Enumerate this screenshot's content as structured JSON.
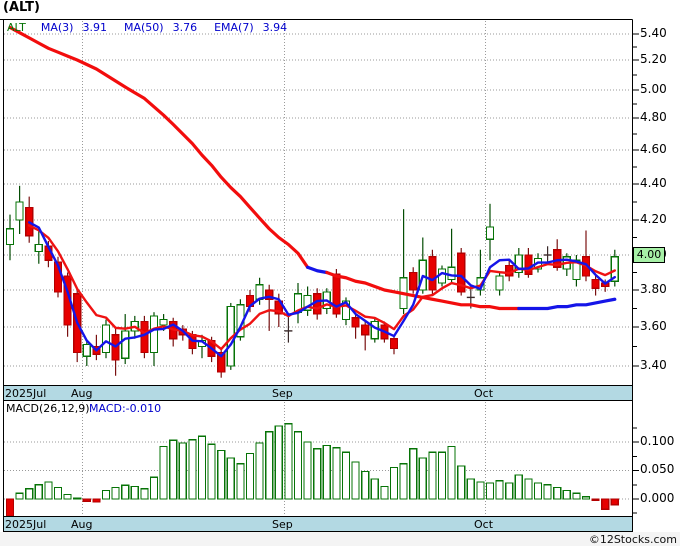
{
  "header": {
    "title": "(ALT)",
    "legend": {
      "symbol": "ALT",
      "items": [
        {
          "label": "MA(3)",
          "value": "3.91"
        },
        {
          "label": "MA(50)",
          "value": "3.76"
        },
        {
          "label": "EMA(7)",
          "value": "3.94"
        }
      ]
    }
  },
  "price_axis": {
    "tick_labels": [
      "5.40",
      "5.20",
      "5.00",
      "4.80",
      "4.60",
      "4.40",
      "4.20",
      "4.00",
      "3.80",
      "3.60",
      "3.40"
    ],
    "last_price_badge": "4.00"
  },
  "macd_panel": {
    "label": "MACD(26,12,9)",
    "value_label": "MACD:-0.010",
    "tick_labels": [
      "0.100",
      "0.050",
      "0.000"
    ]
  },
  "date_axis": {
    "labels": [
      "2025Jul",
      "Aug",
      "Sep",
      "Oct"
    ]
  },
  "footer": {
    "credit": "©12Stocks.com"
  },
  "colors": {
    "up_green": "#067306",
    "down_red": "#e60000",
    "ma_blue": "#1515e8",
    "ma_red": "#f20d0d",
    "band_blue": "#b3d9e3",
    "badge_green": "#a6f0a6",
    "grid_gray": "#9a9a9a",
    "legend_blue": "#0000cc"
  },
  "chart_data": {
    "type": "candlestick",
    "symbol": "ALT",
    "panels": [
      "price",
      "macd_histogram"
    ],
    "xlabel_months": [
      "2025Jul",
      "Aug",
      "Sep",
      "Oct"
    ],
    "price_ticks": [
      5.4,
      5.2,
      5.0,
      4.8,
      4.6,
      4.4,
      4.2,
      4.0,
      3.8,
      3.6,
      3.4
    ],
    "macd_ticks": [
      0.1,
      0.05,
      0.0
    ],
    "months": [
      {
        "label": "2025Jul",
        "start_index": 0
      },
      {
        "label": "Aug",
        "start_index": 8
      },
      {
        "label": "Sep",
        "start_index": 29
      },
      {
        "label": "Oct",
        "start_index": 50
      }
    ],
    "last_price": 4.0,
    "indicators": {
      "ma3": 3.91,
      "ma50": 3.76,
      "ema7": 3.94,
      "macd_26_12_9": -0.01
    },
    "candles": [
      [
        4.06,
        4.23,
        3.97,
        4.15,
        "g"
      ],
      [
        4.2,
        4.39,
        4.12,
        4.3,
        "g"
      ],
      [
        4.27,
        4.33,
        4.07,
        4.11,
        "r"
      ],
      [
        4.02,
        4.14,
        3.95,
        4.06,
        "g"
      ],
      [
        4.05,
        4.08,
        3.93,
        3.97,
        "r"
      ],
      [
        3.96,
        3.99,
        3.76,
        3.79,
        "r"
      ],
      [
        3.88,
        3.9,
        3.55,
        3.61,
        "r"
      ],
      [
        3.78,
        3.8,
        3.42,
        3.47,
        "r"
      ],
      [
        3.45,
        3.53,
        3.4,
        3.51,
        "g"
      ],
      [
        3.5,
        3.56,
        3.43,
        3.46,
        "r"
      ],
      [
        3.47,
        3.64,
        3.44,
        3.61,
        "g"
      ],
      [
        3.56,
        3.59,
        3.35,
        3.43,
        "r"
      ],
      [
        3.44,
        3.67,
        3.41,
        3.58,
        "g"
      ],
      [
        3.58,
        3.66,
        3.54,
        3.63,
        "g"
      ],
      [
        3.63,
        3.66,
        3.44,
        3.47,
        "r"
      ],
      [
        3.47,
        3.68,
        3.4,
        3.66,
        "g"
      ],
      [
        3.61,
        3.67,
        3.58,
        3.64,
        "g"
      ],
      [
        3.63,
        3.65,
        3.5,
        3.54,
        "r"
      ],
      [
        3.59,
        3.61,
        3.53,
        3.56,
        "r"
      ],
      [
        3.56,
        3.58,
        3.46,
        3.49,
        "r"
      ],
      [
        3.5,
        3.56,
        3.44,
        3.53,
        "g"
      ],
      [
        3.53,
        3.55,
        3.42,
        3.45,
        "r"
      ],
      [
        3.47,
        3.49,
        3.34,
        3.37,
        "r"
      ],
      [
        3.4,
        3.73,
        3.38,
        3.71,
        "g"
      ],
      [
        3.55,
        3.75,
        3.53,
        3.72,
        "g"
      ],
      [
        3.77,
        3.8,
        3.68,
        3.71,
        "r"
      ],
      [
        3.75,
        3.87,
        3.72,
        3.83,
        "g"
      ],
      [
        3.8,
        3.83,
        3.58,
        3.75,
        "r"
      ],
      [
        3.74,
        3.78,
        3.6,
        3.67,
        "r"
      ],
      [
        3.58,
        3.66,
        3.52,
        3.58,
        "d"
      ],
      [
        3.68,
        3.84,
        3.62,
        3.78,
        "g"
      ],
      [
        3.69,
        3.82,
        3.66,
        3.77,
        "g"
      ],
      [
        3.78,
        3.81,
        3.64,
        3.67,
        "r"
      ],
      [
        3.7,
        3.81,
        3.67,
        3.79,
        "g"
      ],
      [
        3.89,
        3.92,
        3.65,
        3.67,
        "r"
      ],
      [
        3.64,
        3.76,
        3.61,
        3.74,
        "g"
      ],
      [
        3.65,
        3.67,
        3.54,
        3.6,
        "r"
      ],
      [
        3.61,
        3.63,
        3.48,
        3.56,
        "r"
      ],
      [
        3.54,
        3.65,
        3.52,
        3.63,
        "g"
      ],
      [
        3.61,
        3.63,
        3.52,
        3.54,
        "r"
      ],
      [
        3.54,
        3.56,
        3.46,
        3.49,
        "r"
      ],
      [
        3.7,
        4.26,
        3.67,
        3.87,
        "g"
      ],
      [
        3.9,
        3.93,
        3.78,
        3.8,
        "r"
      ],
      [
        3.8,
        4.1,
        3.78,
        3.97,
        "g"
      ],
      [
        3.99,
        4.03,
        3.77,
        3.8,
        "r"
      ],
      [
        3.84,
        3.94,
        3.82,
        3.92,
        "g"
      ],
      [
        3.86,
        4.15,
        3.84,
        3.93,
        "g"
      ],
      [
        4.01,
        4.04,
        3.77,
        3.79,
        "r"
      ],
      [
        3.76,
        3.82,
        3.7,
        3.76,
        "d"
      ],
      [
        3.8,
        4.03,
        3.77,
        3.87,
        "g"
      ],
      [
        4.09,
        4.29,
        3.97,
        4.16,
        "g"
      ],
      [
        3.8,
        3.9,
        3.77,
        3.88,
        "g"
      ],
      [
        3.94,
        3.97,
        3.85,
        3.88,
        "r"
      ],
      [
        3.9,
        4.04,
        3.87,
        4.0,
        "g"
      ],
      [
        4.0,
        4.04,
        3.87,
        3.89,
        "r"
      ],
      [
        3.92,
        4.01,
        3.9,
        3.98,
        "g"
      ],
      [
        4.0,
        4.05,
        3.95,
        4.0,
        "d"
      ],
      [
        4.03,
        4.09,
        3.91,
        3.93,
        "r"
      ],
      [
        3.92,
        4.01,
        3.88,
        3.99,
        "g"
      ],
      [
        3.86,
        4.0,
        3.82,
        3.97,
        "g"
      ],
      [
        3.99,
        4.14,
        3.85,
        3.88,
        "r"
      ],
      [
        3.86,
        3.89,
        3.77,
        3.81,
        "r"
      ],
      [
        3.84,
        3.86,
        3.79,
        3.82,
        "r"
      ],
      [
        3.85,
        4.03,
        3.82,
        3.99,
        "g"
      ]
    ],
    "ma50_line": [
      5.45,
      5.41,
      5.37,
      5.33,
      5.29,
      5.26,
      5.23,
      5.2,
      5.17,
      5.14,
      5.1,
      5.06,
      5.02,
      4.98,
      4.94,
      4.88,
      4.82,
      4.76,
      4.7,
      4.64,
      4.57,
      4.51,
      4.44,
      4.38,
      4.33,
      4.27,
      4.21,
      4.15,
      4.1,
      4.06,
      4.01,
      3.93,
      3.91,
      3.9,
      3.88,
      3.87,
      3.85,
      3.84,
      3.82,
      3.8,
      3.79,
      3.78,
      3.77,
      3.76,
      3.75,
      3.74,
      3.73,
      3.72,
      3.72,
      3.71,
      3.71,
      3.7,
      3.7,
      3.7,
      3.7,
      3.7,
      3.7,
      3.71,
      3.71,
      3.72,
      3.72,
      3.73,
      3.74,
      3.75
    ],
    "ma50_segments": [
      {
        "from": 0,
        "to": 31,
        "color": "red"
      },
      {
        "from": 31,
        "to": 33,
        "color": "blue"
      },
      {
        "from": 33,
        "to": 53,
        "color": "red"
      },
      {
        "from": 53,
        "to": 63,
        "color": "blue"
      }
    ],
    "macd_histogram": [
      -0.03,
      0.01,
      0.018,
      0.025,
      0.03,
      0.02,
      0.008,
      0.002,
      -0.004,
      -0.005,
      0.015,
      0.02,
      0.024,
      0.022,
      0.018,
      0.038,
      0.092,
      0.103,
      0.098,
      0.104,
      0.11,
      0.096,
      0.085,
      0.072,
      0.062,
      0.08,
      0.098,
      0.118,
      0.128,
      0.132,
      0.118,
      0.1,
      0.088,
      0.094,
      0.09,
      0.082,
      0.065,
      0.048,
      0.035,
      0.022,
      0.055,
      0.062,
      0.088,
      0.072,
      0.082,
      0.082,
      0.092,
      0.058,
      0.035,
      0.03,
      0.028,
      0.032,
      0.028,
      0.042,
      0.035,
      0.028,
      0.025,
      0.02,
      0.015,
      0.01,
      0.004,
      -0.002,
      -0.018,
      -0.01
    ]
  }
}
